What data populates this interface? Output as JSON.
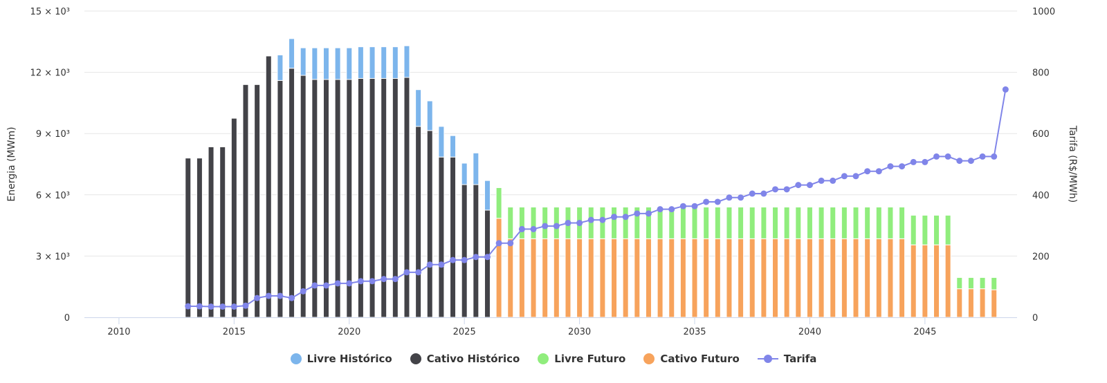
{
  "chart_data": {
    "type": "bar",
    "stacked": true,
    "title": "",
    "xlabel": "",
    "ylabel": "Energia (MWm)",
    "y2label": "Tarifa (R$/MWh)",
    "xlim": [
      2008.5,
      2049
    ],
    "ylim": [
      0,
      15000
    ],
    "y2lim": [
      0,
      1000
    ],
    "x_ticks": [
      2010,
      2015,
      2020,
      2025,
      2030,
      2035,
      2040,
      2045
    ],
    "y_ticks": [
      {
        "value": 0,
        "label": "0"
      },
      {
        "value": 3000,
        "label": "3 × 10³"
      },
      {
        "value": 6000,
        "label": "6 × 10³"
      },
      {
        "value": 9000,
        "label": "9 × 10³"
      },
      {
        "value": 12000,
        "label": "12 × 10³"
      },
      {
        "value": 15000,
        "label": "15 × 10³"
      }
    ],
    "y2_ticks": [
      0,
      200,
      400,
      600,
      800,
      1000
    ],
    "grid": true,
    "legend_position": "bottom",
    "x": [
      2013,
      2013.5,
      2014,
      2014.5,
      2015,
      2015.5,
      2016,
      2016.5,
      2017,
      2017.5,
      2018,
      2018.5,
      2019,
      2019.5,
      2020,
      2020.5,
      2021,
      2021.5,
      2022,
      2022.5,
      2023,
      2023.5,
      2024,
      2024.5,
      2025,
      2025.5,
      2026,
      2026.5,
      2027,
      2027.5,
      2028,
      2028.5,
      2029,
      2029.5,
      2030,
      2030.5,
      2031,
      2031.5,
      2032,
      2032.5,
      2033,
      2033.5,
      2034,
      2034.5,
      2035,
      2035.5,
      2036,
      2036.5,
      2037,
      2037.5,
      2038,
      2038.5,
      2039,
      2039.5,
      2040,
      2040.5,
      2041,
      2041.5,
      2042,
      2042.5,
      2043,
      2043.5,
      2044,
      2044.5,
      2045,
      2045.5,
      2046,
      2046.5,
      2047,
      2047.5,
      2048,
      2048.5
    ],
    "series": [
      {
        "name": "Cativo Histórico",
        "color": "#434348",
        "stack_order": 1,
        "values": [
          7800,
          7800,
          8350,
          8350,
          9750,
          11400,
          11400,
          12800,
          11600,
          12200,
          11850,
          11650,
          11650,
          11650,
          11650,
          11700,
          11700,
          11700,
          11700,
          11750,
          9350,
          9150,
          7850,
          7850,
          6500,
          6500,
          5250,
          0,
          0,
          0,
          0,
          0,
          0,
          0,
          0,
          0,
          0,
          0,
          0,
          0,
          0,
          0,
          0,
          0,
          0,
          0,
          0,
          0,
          0,
          0,
          0,
          0,
          0,
          0,
          0,
          0,
          0,
          0,
          0,
          0,
          0,
          0,
          0,
          0,
          0,
          0,
          0,
          0,
          0,
          0,
          0,
          0
        ]
      },
      {
        "name": "Livre Histórico",
        "color": "#7cb5ec",
        "stack_order": 2,
        "values": [
          0,
          0,
          0,
          0,
          0,
          0,
          0,
          0,
          1250,
          1450,
          1350,
          1550,
          1550,
          1550,
          1550,
          1550,
          1550,
          1550,
          1550,
          1550,
          1800,
          1450,
          1500,
          1050,
          1050,
          1550,
          1450,
          0,
          0,
          0,
          0,
          0,
          0,
          0,
          0,
          0,
          0,
          0,
          0,
          0,
          0,
          0,
          0,
          0,
          0,
          0,
          0,
          0,
          0,
          0,
          0,
          0,
          0,
          0,
          0,
          0,
          0,
          0,
          0,
          0,
          0,
          0,
          0,
          0,
          0,
          0,
          0,
          0,
          0,
          0,
          0,
          0
        ]
      },
      {
        "name": "Cativo Futuro",
        "color": "#f7a35c",
        "stack_order": 3,
        "values": [
          0,
          0,
          0,
          0,
          0,
          0,
          0,
          0,
          0,
          0,
          0,
          0,
          0,
          0,
          0,
          0,
          0,
          0,
          0,
          0,
          0,
          0,
          0,
          0,
          0,
          0,
          0,
          4850,
          3850,
          3850,
          3850,
          3850,
          3850,
          3850,
          3850,
          3850,
          3850,
          3850,
          3850,
          3850,
          3850,
          3850,
          3850,
          3850,
          3850,
          3850,
          3850,
          3850,
          3850,
          3850,
          3850,
          3850,
          3850,
          3850,
          3850,
          3850,
          3850,
          3850,
          3850,
          3850,
          3850,
          3850,
          3850,
          3550,
          3550,
          3550,
          3550,
          1400,
          1400,
          1400,
          1350,
          0
        ]
      },
      {
        "name": "Livre Futuro",
        "color": "#90ed7d",
        "stack_order": 4,
        "values": [
          0,
          0,
          0,
          0,
          0,
          0,
          0,
          0,
          0,
          0,
          0,
          0,
          0,
          0,
          0,
          0,
          0,
          0,
          0,
          0,
          0,
          0,
          0,
          0,
          0,
          0,
          0,
          1500,
          1550,
          1550,
          1550,
          1550,
          1550,
          1550,
          1550,
          1550,
          1550,
          1550,
          1550,
          1550,
          1550,
          1550,
          1550,
          1550,
          1550,
          1550,
          1550,
          1550,
          1550,
          1550,
          1550,
          1550,
          1550,
          1550,
          1550,
          1550,
          1550,
          1550,
          1550,
          1550,
          1550,
          1550,
          1550,
          1450,
          1450,
          1450,
          1450,
          550,
          550,
          550,
          600,
          0
        ]
      },
      {
        "name": "Tarifa",
        "color": "#8085e9",
        "type": "line",
        "axis": "right",
        "values": [
          36,
          36,
          35,
          35,
          35,
          38,
          63,
          70,
          70,
          63,
          85,
          104,
          104,
          111,
          111,
          118,
          118,
          125,
          125,
          147,
          147,
          172,
          172,
          187,
          187,
          197,
          197,
          242,
          242,
          288,
          288,
          298,
          298,
          308,
          308,
          318,
          318,
          328,
          328,
          339,
          339,
          353,
          353,
          363,
          363,
          377,
          377,
          391,
          391,
          404,
          404,
          418,
          418,
          432,
          432,
          446,
          446,
          461,
          461,
          477,
          477,
          493,
          493,
          507,
          507,
          525,
          525,
          511,
          511,
          525,
          525,
          744
        ]
      }
    ]
  },
  "legend": [
    {
      "label": "Livre Histórico",
      "color": "#7cb5ec",
      "marker": "circle"
    },
    {
      "label": "Cativo Histórico",
      "color": "#434348",
      "marker": "circle"
    },
    {
      "label": "Livre Futuro",
      "color": "#90ed7d",
      "marker": "circle"
    },
    {
      "label": "Cativo Futuro",
      "color": "#f7a35c",
      "marker": "circle"
    },
    {
      "label": "Tarifa",
      "color": "#8085e9",
      "marker": "line"
    }
  ]
}
